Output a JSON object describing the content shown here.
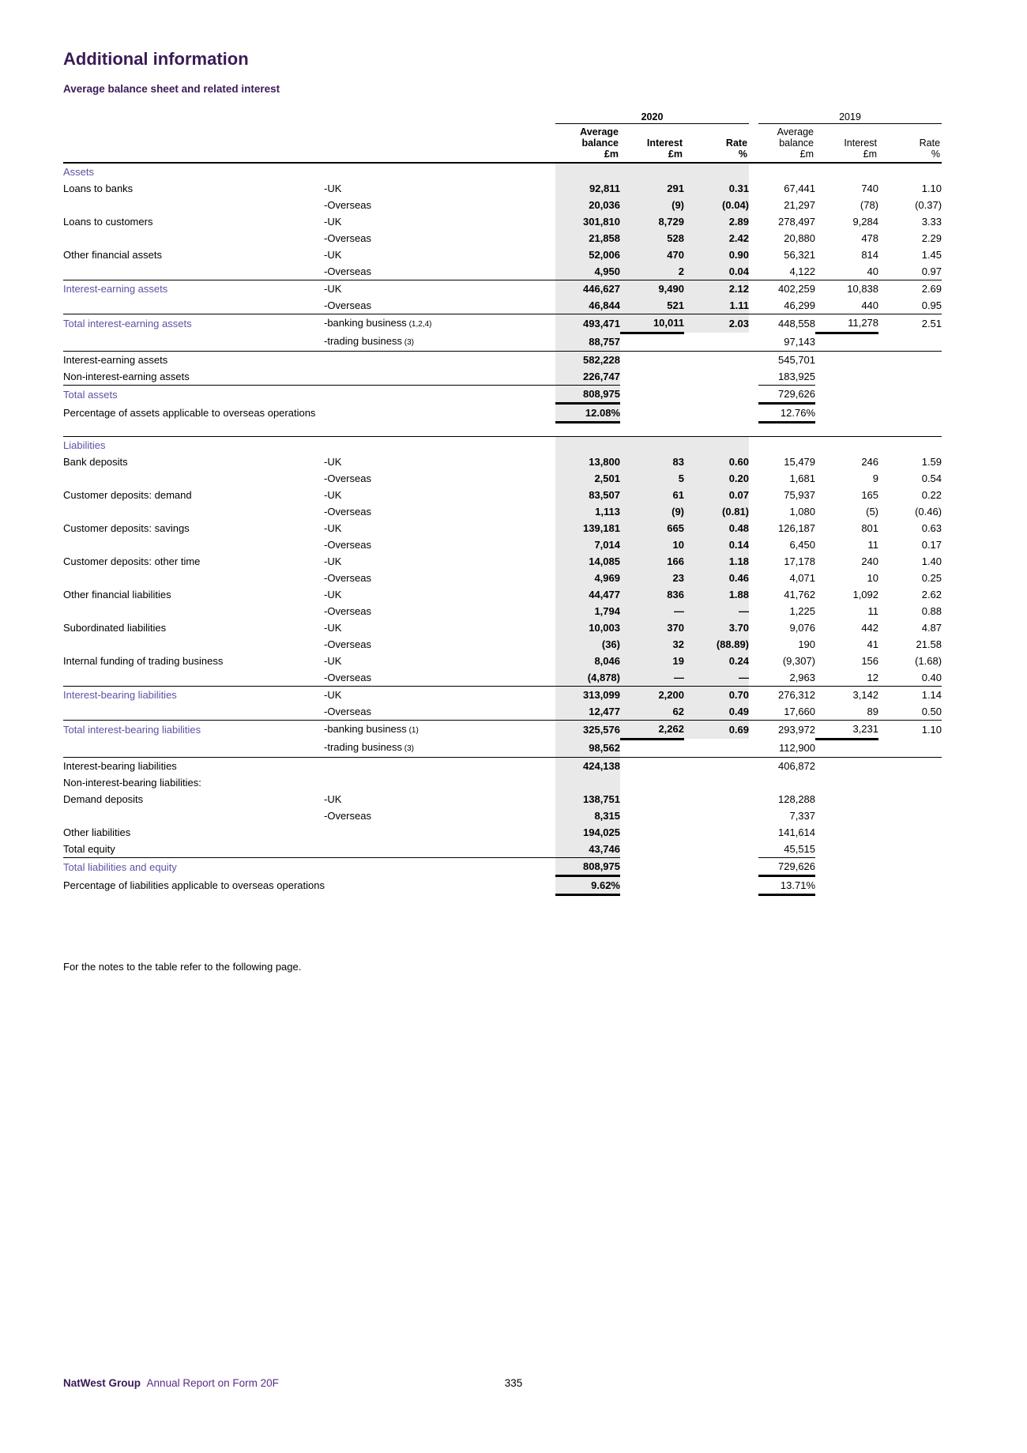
{
  "page": {
    "title": "Additional information",
    "subtitle": "Average balance sheet and related interest",
    "note": "For the notes to the table refer to the following page.",
    "footer_brand": "NatWest Group",
    "footer_text": "Annual Report on Form 20F",
    "page_number": "335"
  },
  "colors": {
    "heading_purple": "#3a1a57",
    "section_purple": "#5d51a5",
    "footer_purple": "#5b2d86",
    "shade_grey": "#e9e9e9"
  },
  "table": {
    "year_2020": "2020",
    "year_2019": "2019",
    "headers": {
      "balance_2020": "Average\nbalance\n£m",
      "interest_2020": "Interest\n£m",
      "rate_2020": "Rate\n%",
      "balance_2019": "Average\nbalance\n£m",
      "interest_2019": "Interest\n£m",
      "rate_2019": "Rate\n%"
    },
    "rows": [
      {
        "l": "Assets",
        "sec": true,
        "s": "",
        "v": [
          "",
          "",
          "",
          "",
          "",
          ""
        ],
        "sh": "full"
      },
      {
        "l": "Loans to banks",
        "s": "-UK",
        "v": [
          "92,811",
          "291",
          "0.31",
          "67,441",
          "740",
          "1.10"
        ],
        "sh": "full"
      },
      {
        "l": "",
        "s": "-Overseas",
        "v": [
          "20,036",
          "(9)",
          "(0.04)",
          "21,297",
          "(78)",
          "(0.37)"
        ],
        "sh": "full"
      },
      {
        "l": "Loans to customers",
        "s": "-UK",
        "v": [
          "301,810",
          "8,729",
          "2.89",
          "278,497",
          "9,284",
          "3.33"
        ],
        "sh": "full"
      },
      {
        "l": "",
        "s": "-Overseas",
        "v": [
          "21,858",
          "528",
          "2.42",
          "20,880",
          "478",
          "2.29"
        ],
        "sh": "full"
      },
      {
        "l": "Other financial assets",
        "s": "-UK",
        "v": [
          "52,006",
          "470",
          "0.90",
          "56,321",
          "814",
          "1.45"
        ],
        "sh": "full"
      },
      {
        "l": "",
        "s": "-Overseas",
        "v": [
          "4,950",
          "2",
          "0.04",
          "4,122",
          "40",
          "0.97"
        ],
        "sh": "full"
      },
      {
        "l": "Interest-earning assets",
        "sec": true,
        "s": "-UK",
        "v": [
          "446,627",
          "9,490",
          "2.12",
          "402,259",
          "10,838",
          "2.69"
        ],
        "sh": "full",
        "rt": true
      },
      {
        "l": "",
        "s": "-Overseas",
        "v": [
          "46,844",
          "521",
          "1.11",
          "46,299",
          "440",
          "0.95"
        ],
        "sh": "full"
      },
      {
        "l": "Total interest-earning assets",
        "sec": true,
        "s": "-banking business",
        "n": "(1,2,4)",
        "v": [
          "493,471",
          "10,011",
          "2.03",
          "448,558",
          "11,278",
          "2.51"
        ],
        "sh": "full",
        "rt": true,
        "bar": "i"
      },
      {
        "l": "",
        "s": "-trading business",
        "n": "(3)",
        "v": [
          "88,757",
          "",
          "",
          "97,143",
          "",
          ""
        ],
        "sh": "bal"
      },
      {
        "l": "Interest-earning assets",
        "s": "",
        "v": [
          "582,228",
          "",
          "",
          "545,701",
          "",
          ""
        ],
        "sh": "bal",
        "rt": true
      },
      {
        "l": "Non-interest-earning assets",
        "s": "",
        "v": [
          "226,747",
          "",
          "",
          "183,925",
          "",
          ""
        ],
        "sh": "bal",
        "pb": true
      },
      {
        "l": "Total assets",
        "sec": true,
        "s": "",
        "v": [
          "808,975",
          "",
          "",
          "729,626",
          "",
          ""
        ],
        "sh": "bal",
        "bar": "b"
      },
      {
        "l": "Percentage of assets applicable to overseas operations",
        "s": "",
        "v": [
          "12.08%",
          "",
          "",
          "12.76%",
          "",
          ""
        ],
        "sh": "bal",
        "bar": "b"
      },
      {
        "sp": true
      },
      {
        "l": "Liabilities",
        "sec": true,
        "s": "",
        "v": [
          "",
          "",
          "",
          "",
          "",
          ""
        ],
        "sh": "full",
        "rt": true
      },
      {
        "l": "Bank deposits",
        "s": "-UK",
        "v": [
          "13,800",
          "83",
          "0.60",
          "15,479",
          "246",
          "1.59"
        ],
        "sh": "full"
      },
      {
        "l": "",
        "s": "-Overseas",
        "v": [
          "2,501",
          "5",
          "0.20",
          "1,681",
          "9",
          "0.54"
        ],
        "sh": "full"
      },
      {
        "l": "Customer deposits: demand",
        "s": "-UK",
        "v": [
          "83,507",
          "61",
          "0.07",
          "75,937",
          "165",
          "0.22"
        ],
        "sh": "full"
      },
      {
        "l": "",
        "s": "-Overseas",
        "v": [
          "1,113",
          "(9)",
          "(0.81)",
          "1,080",
          "(5)",
          "(0.46)"
        ],
        "sh": "full"
      },
      {
        "l": "Customer deposits: savings",
        "s": "-UK",
        "v": [
          "139,181",
          "665",
          "0.48",
          "126,187",
          "801",
          "0.63"
        ],
        "sh": "full"
      },
      {
        "l": "",
        "s": "-Overseas",
        "v": [
          "7,014",
          "10",
          "0.14",
          "6,450",
          "11",
          "0.17"
        ],
        "sh": "full"
      },
      {
        "l": "Customer deposits: other time",
        "s": "-UK",
        "v": [
          "14,085",
          "166",
          "1.18",
          "17,178",
          "240",
          "1.40"
        ],
        "sh": "full"
      },
      {
        "l": "",
        "s": "-Overseas",
        "v": [
          "4,969",
          "23",
          "0.46",
          "4,071",
          "10",
          "0.25"
        ],
        "sh": "full"
      },
      {
        "l": "Other financial liabilities",
        "s": "-UK",
        "v": [
          "44,477",
          "836",
          "1.88",
          "41,762",
          "1,092",
          "2.62"
        ],
        "sh": "full"
      },
      {
        "l": "",
        "s": "-Overseas",
        "v": [
          "1,794",
          "—",
          "—",
          "1,225",
          "11",
          "0.88"
        ],
        "sh": "full"
      },
      {
        "l": "Subordinated liabilities",
        "s": "-UK",
        "v": [
          "10,003",
          "370",
          "3.70",
          "9,076",
          "442",
          "4.87"
        ],
        "sh": "full"
      },
      {
        "l": "",
        "s": "-Overseas",
        "v": [
          "(36)",
          "32",
          "(88.89)",
          "190",
          "41",
          "21.58"
        ],
        "sh": "full"
      },
      {
        "l": "Internal funding of trading business",
        "s": "-UK",
        "v": [
          "8,046",
          "19",
          "0.24",
          "(9,307)",
          "156",
          "(1.68)"
        ],
        "sh": "full"
      },
      {
        "l": "",
        "s": "-Overseas",
        "v": [
          "(4,878)",
          "—",
          "—",
          "2,963",
          "12",
          "0.40"
        ],
        "sh": "full"
      },
      {
        "l": "Interest-bearing liabilities",
        "sec": true,
        "s": "-UK",
        "v": [
          "313,099",
          "2,200",
          "0.70",
          "276,312",
          "3,142",
          "1.14"
        ],
        "sh": "full",
        "rt": true
      },
      {
        "l": "",
        "s": "-Overseas",
        "v": [
          "12,477",
          "62",
          "0.49",
          "17,660",
          "89",
          "0.50"
        ],
        "sh": "full"
      },
      {
        "l": "Total interest-bearing liabilities",
        "sec": true,
        "s": "-banking business",
        "n": "(1)",
        "v": [
          "325,576",
          "2,262",
          "0.69",
          "293,972",
          "3,231",
          "1.10"
        ],
        "sh": "full",
        "rt": true,
        "bar": "i"
      },
      {
        "l": "",
        "s": "-trading business",
        "n": "(3)",
        "v": [
          "98,562",
          "",
          "",
          "112,900",
          "",
          ""
        ],
        "sh": "bal"
      },
      {
        "l": "Interest-bearing liabilities",
        "s": "",
        "v": [
          "424,138",
          "",
          "",
          "406,872",
          "",
          ""
        ],
        "sh": "bal",
        "rt": true
      },
      {
        "l": "Non-interest-bearing liabilities:",
        "s": "",
        "v": [
          "",
          "",
          "",
          "",
          "",
          ""
        ],
        "sh": "bal"
      },
      {
        "l": "Demand deposits",
        "s": "-UK",
        "v": [
          "138,751",
          "",
          "",
          "128,288",
          "",
          ""
        ],
        "sh": "bal"
      },
      {
        "l": "",
        "s": "-Overseas",
        "v": [
          "8,315",
          "",
          "",
          "7,337",
          "",
          ""
        ],
        "sh": "bal"
      },
      {
        "l": "Other liabilities",
        "s": "",
        "v": [
          "194,025",
          "",
          "",
          "141,614",
          "",
          ""
        ],
        "sh": "bal"
      },
      {
        "l": "Total equity",
        "s": "",
        "v": [
          "43,746",
          "",
          "",
          "45,515",
          "",
          ""
        ],
        "sh": "bal",
        "pb": true
      },
      {
        "l": "Total liabilities and equity",
        "sec": true,
        "s": "",
        "v": [
          "808,975",
          "",
          "",
          "729,626",
          "",
          ""
        ],
        "sh": "bal",
        "bar": "b"
      },
      {
        "l": "Percentage of liabilities applicable to overseas operations",
        "s": "",
        "v": [
          "9.62%",
          "",
          "",
          "13.71%",
          "",
          ""
        ],
        "sh": "bal",
        "bar": "b"
      }
    ]
  }
}
